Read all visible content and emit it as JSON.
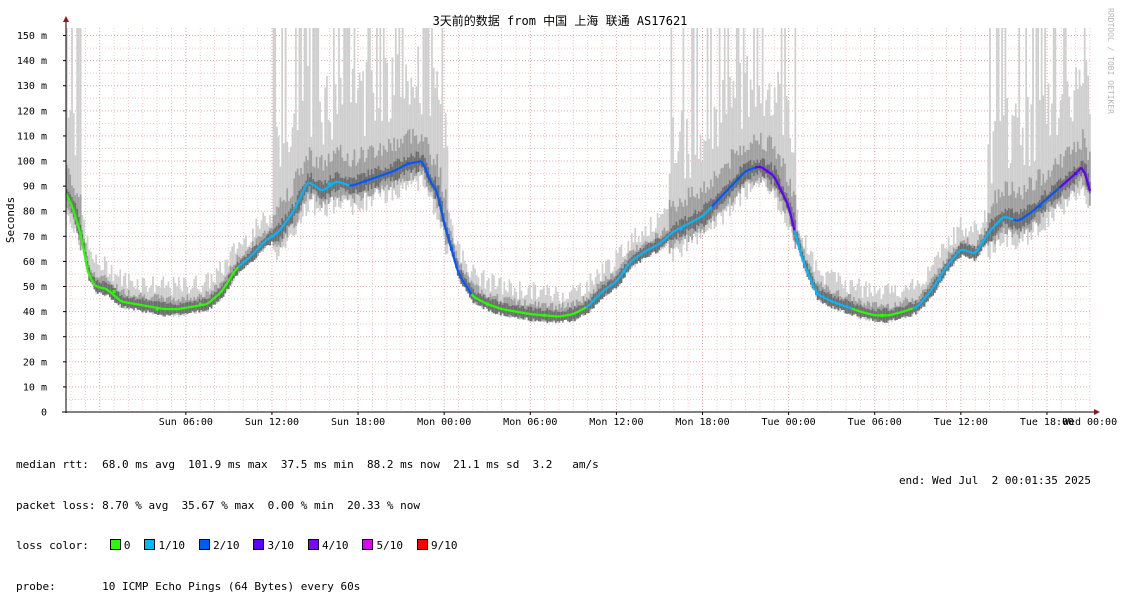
{
  "chart_data": {
    "type": "line",
    "title": "3天前的数据 from 中国 上海 联通 AS17621",
    "ylabel": "Seconds",
    "ylim": [
      0,
      153
    ],
    "y_ticks": [
      {
        "value": 0,
        "label": "0"
      },
      {
        "value": 10,
        "label": "10 m"
      },
      {
        "value": 20,
        "label": "20 m"
      },
      {
        "value": 30,
        "label": "30 m"
      },
      {
        "value": 40,
        "label": "40 m"
      },
      {
        "value": 50,
        "label": "50 m"
      },
      {
        "value": 60,
        "label": "60 m"
      },
      {
        "value": 70,
        "label": "70 m"
      },
      {
        "value": 80,
        "label": "80 m"
      },
      {
        "value": 90,
        "label": "90 m"
      },
      {
        "value": 100,
        "label": "100 m"
      },
      {
        "value": 110,
        "label": "110 m"
      },
      {
        "value": 120,
        "label": "120 m"
      },
      {
        "value": 130,
        "label": "130 m"
      },
      {
        "value": 140,
        "label": "140 m"
      },
      {
        "value": 150,
        "label": "150 m"
      }
    ],
    "x_range_hours": [
      -2.35,
      69.0
    ],
    "x_ticks": [
      {
        "hour": 6,
        "label": "Sun 06:00"
      },
      {
        "hour": 12,
        "label": "Sun 12:00"
      },
      {
        "hour": 18,
        "label": "Sun 18:00"
      },
      {
        "hour": 24,
        "label": "Mon 00:00"
      },
      {
        "hour": 30,
        "label": "Mon 06:00"
      },
      {
        "hour": 36,
        "label": "Mon 12:00"
      },
      {
        "hour": 42,
        "label": "Mon 18:00"
      },
      {
        "hour": 48,
        "label": "Tue 00:00"
      },
      {
        "hour": 54,
        "label": "Tue 06:00"
      },
      {
        "hour": 60,
        "label": "Tue 12:00"
      },
      {
        "hour": 66,
        "label": "Tue 18:00"
      },
      {
        "hour": 72,
        "label": "Wed 00:00"
      }
    ],
    "grid": true,
    "median_series": {
      "name": "median rtt",
      "points": [
        [
          -2.3,
          87
        ],
        [
          -1.8,
          80
        ],
        [
          -1.3,
          70
        ],
        [
          -0.8,
          55
        ],
        [
          -0.3,
          50
        ],
        [
          0.5,
          49
        ],
        [
          1.5,
          44
        ],
        [
          2.5,
          43
        ],
        [
          3.5,
          42
        ],
        [
          4.5,
          41
        ],
        [
          5.5,
          41
        ],
        [
          6.5,
          42
        ],
        [
          7.5,
          43
        ],
        [
          8.5,
          48
        ],
        [
          9.5,
          57
        ],
        [
          10.5,
          62
        ],
        [
          11.5,
          68
        ],
        [
          12.5,
          72
        ],
        [
          13.5,
          80
        ],
        [
          14.5,
          92
        ],
        [
          15.5,
          88
        ],
        [
          16.5,
          92
        ],
        [
          17.5,
          90
        ],
        [
          18.5,
          92
        ],
        [
          19.5,
          94
        ],
        [
          20.5,
          96
        ],
        [
          21.5,
          99
        ],
        [
          22.5,
          100
        ],
        [
          23.0,
          92
        ],
        [
          23.5,
          88
        ],
        [
          24.0,
          75
        ],
        [
          24.5,
          65
        ],
        [
          25.0,
          55
        ],
        [
          26.0,
          46
        ],
        [
          27.0,
          43
        ],
        [
          28.0,
          41
        ],
        [
          29.0,
          40
        ],
        [
          30.0,
          39
        ],
        [
          31.0,
          38.5
        ],
        [
          32.0,
          38
        ],
        [
          33.0,
          39
        ],
        [
          34.0,
          42
        ],
        [
          35.0,
          48
        ],
        [
          36.0,
          52
        ],
        [
          37.0,
          60
        ],
        [
          38.0,
          64
        ],
        [
          39.0,
          67
        ],
        [
          40.0,
          72
        ],
        [
          41.0,
          75
        ],
        [
          42.0,
          78
        ],
        [
          43.0,
          84
        ],
        [
          44.0,
          90
        ],
        [
          45.0,
          96
        ],
        [
          46.0,
          98
        ],
        [
          47.0,
          94
        ],
        [
          48.0,
          82
        ],
        [
          48.5,
          70
        ],
        [
          49.0,
          60
        ],
        [
          49.5,
          53
        ],
        [
          50.0,
          47
        ],
        [
          51.0,
          44
        ],
        [
          52.0,
          42
        ],
        [
          53.0,
          40
        ],
        [
          54.0,
          38.5
        ],
        [
          55.0,
          38.5
        ],
        [
          56.0,
          40
        ],
        [
          57.0,
          42
        ],
        [
          58.0,
          49
        ],
        [
          59.0,
          58
        ],
        [
          60.0,
          65
        ],
        [
          61.0,
          63
        ],
        [
          62.0,
          72
        ],
        [
          63.0,
          78
        ],
        [
          64.0,
          76
        ],
        [
          65.0,
          80
        ],
        [
          66.0,
          85
        ],
        [
          67.0,
          90
        ],
        [
          68.0,
          95
        ],
        [
          68.5,
          98
        ],
        [
          69.0,
          88
        ]
      ]
    },
    "loss_samples": [
      {
        "hour": 1.0,
        "value": 48,
        "loss": "0"
      },
      {
        "hour": 4.0,
        "value": 41,
        "loss": "0"
      },
      {
        "hour": 7.0,
        "value": 43,
        "loss": "0"
      },
      {
        "hour": 12.0,
        "value": 70,
        "loss": "1/10"
      },
      {
        "hour": 16.0,
        "value": 91,
        "loss": "1/10"
      },
      {
        "hour": 18.5,
        "value": 92,
        "loss": "2/10"
      },
      {
        "hour": 21.5,
        "value": 99,
        "loss": "2/10"
      },
      {
        "hour": 24.5,
        "value": 65,
        "loss": "2/10"
      },
      {
        "hour": 27.0,
        "value": 43,
        "loss": "0"
      },
      {
        "hour": 31.0,
        "value": 38.5,
        "loss": "0"
      },
      {
        "hour": 36.5,
        "value": 56,
        "loss": "1/10"
      },
      {
        "hour": 40.5,
        "value": 73,
        "loss": "1/10"
      },
      {
        "hour": 44.5,
        "value": 93,
        "loss": "2/10"
      },
      {
        "hour": 46.5,
        "value": 96,
        "loss": "3/10"
      },
      {
        "hour": 50.0,
        "value": 47,
        "loss": "1/10"
      },
      {
        "hour": 54.5,
        "value": 38.5,
        "loss": "0"
      },
      {
        "hour": 58.5,
        "value": 53,
        "loss": "1/10"
      },
      {
        "hour": 61.5,
        "value": 68,
        "loss": "1/10"
      },
      {
        "hour": 65.5,
        "value": 82,
        "loss": "2/10"
      },
      {
        "hour": 68.0,
        "value": 95,
        "loss": "3/10"
      }
    ]
  },
  "watermark": "RRDTOOL / TOBI OETIKER",
  "stats": {
    "median_rtt": "median rtt:  68.0 ms avg  101.9 ms max  37.5 ms min  88.2 ms now  21.1 ms sd  3.2   am/s",
    "packet_loss": "packet loss: 8.70 % avg  35.67 % max  0.00 % min  20.33 % now",
    "loss_color_label": "loss color:",
    "probe": "probe:       10 ICMP Echo Pings (64 Bytes) every 60s",
    "end": "end: Wed Jul  2 00:01:35 2025"
  },
  "loss_colors": [
    {
      "label": "0",
      "color": "#26ff00"
    },
    {
      "label": "1/10",
      "color": "#00b8ff"
    },
    {
      "label": "2/10",
      "color": "#0059ff"
    },
    {
      "label": "3/10",
      "color": "#5e00ff"
    },
    {
      "label": "4/10",
      "color": "#7e00ff"
    },
    {
      "label": "5/10",
      "color": "#dd00ff"
    },
    {
      "label": "9/10",
      "color": "#ff0000"
    }
  ],
  "colors": {
    "grid_major": "#e0a8a8",
    "grid_minor": "#f0c8c8",
    "smoke_light": "#cfcfcf",
    "smoke_mid": "#a0a0a0",
    "smoke_dark": "#6e6e6e",
    "axis": "#000000",
    "arrow": "#8b1a1a"
  }
}
